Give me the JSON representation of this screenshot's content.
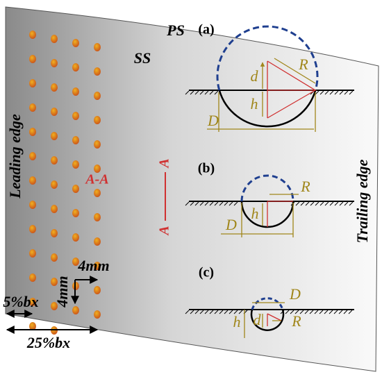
{
  "surface": {
    "pressure_side": "PS",
    "suction_side": "SS",
    "leading_edge": "Leading edge",
    "trailing_edge": "Trailing edge"
  },
  "section_marks": {
    "hole_label": "A-A",
    "cut_top": "A",
    "cut_bottom": "A"
  },
  "spacing": {
    "pitch_x": "4mm",
    "pitch_y": "4mm",
    "offset_first": "5%bx",
    "offset_last": "25%bx"
  },
  "panels": [
    {
      "label": "(a)",
      "dims": {
        "R": "R",
        "d": "d",
        "h": "h",
        "D": "D"
      }
    },
    {
      "label": "(b)",
      "dims": {
        "R": "R",
        "h": "h",
        "D": "D"
      }
    },
    {
      "label": "(c)",
      "dims": {
        "D": "D",
        "h": "h",
        "d": "d",
        "R": "R"
      }
    }
  ]
}
